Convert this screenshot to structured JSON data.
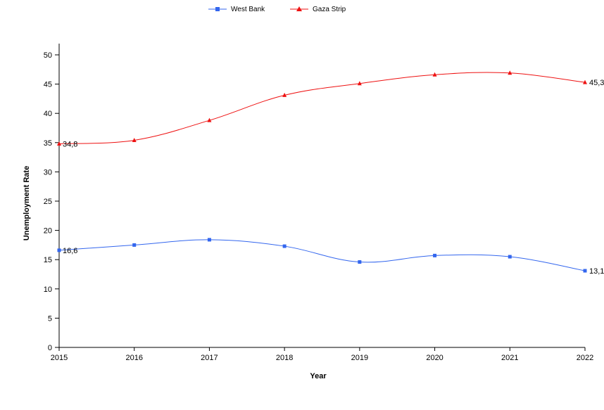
{
  "chart_data": {
    "type": "line",
    "title": "",
    "xlabel": "Year",
    "ylabel": "Unemployment Rate",
    "x": [
      "2015",
      "2016",
      "2017",
      "2018",
      "2019",
      "2020",
      "2021",
      "2022"
    ],
    "ylim": [
      0,
      50
    ],
    "yticks": [
      0,
      5,
      10,
      15,
      20,
      25,
      30,
      35,
      40,
      45,
      50
    ],
    "grid": false,
    "legend_position": "top-center",
    "series": [
      {
        "name": "West Bank",
        "color": "#3366ee",
        "marker": "square",
        "values": [
          16.6,
          17.5,
          18.4,
          17.3,
          14.6,
          15.7,
          15.5,
          13.1
        ],
        "labels": {
          "first": "16,6",
          "last": "13,1"
        }
      },
      {
        "name": "Gaza Strip",
        "color": "#ee1111",
        "marker": "triangle",
        "values": [
          34.8,
          35.4,
          38.8,
          43.1,
          45.1,
          46.6,
          46.9,
          45.3
        ],
        "labels": {
          "first": "34,8",
          "last": "45,3"
        }
      }
    ]
  }
}
